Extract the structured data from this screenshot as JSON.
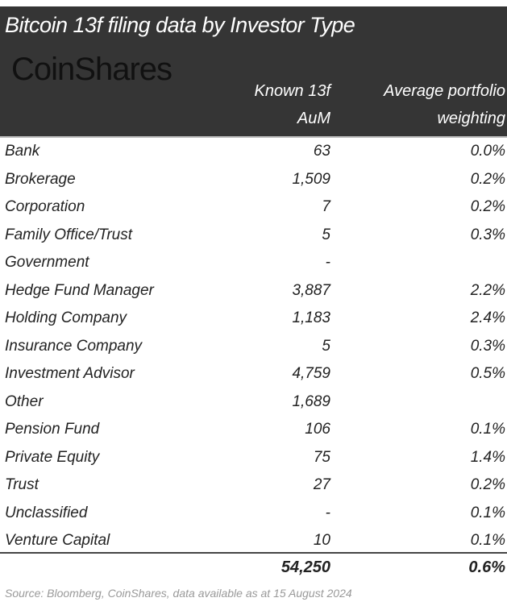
{
  "title": "Bitcoin 13f filing data by Investor Type",
  "logo": "CoinShares",
  "chart_data": {
    "type": "table",
    "title": "Bitcoin 13f filing data by Investor Type",
    "columns": [
      {
        "line1": "Known 13f",
        "line2": "AuM"
      },
      {
        "line1": "Average portfolio",
        "line2": "weighting"
      }
    ],
    "rows": [
      {
        "label": "Bank",
        "aum": "63",
        "weight": "0.0%"
      },
      {
        "label": "Brokerage",
        "aum": "1,509",
        "weight": "0.2%"
      },
      {
        "label": "Corporation",
        "aum": "7",
        "weight": "0.2%"
      },
      {
        "label": "Family Office/Trust",
        "aum": "5",
        "weight": "0.3%"
      },
      {
        "label": "Government",
        "aum": "-",
        "weight": ""
      },
      {
        "label": "Hedge Fund Manager",
        "aum": "3,887",
        "weight": "2.2%"
      },
      {
        "label": "Holding Company",
        "aum": "1,183",
        "weight": "2.4%"
      },
      {
        "label": "Insurance Company",
        "aum": "5",
        "weight": "0.3%"
      },
      {
        "label": "Investment Advisor",
        "aum": "4,759",
        "weight": "0.5%"
      },
      {
        "label": "Other",
        "aum": "1,689",
        "weight": ""
      },
      {
        "label": "Pension Fund",
        "aum": "106",
        "weight": "0.1%"
      },
      {
        "label": "Private Equity",
        "aum": "75",
        "weight": "1.4%"
      },
      {
        "label": "Trust",
        "aum": "27",
        "weight": "0.2%"
      },
      {
        "label": "Unclassified",
        "aum": "-",
        "weight": "0.1%"
      },
      {
        "label": "Venture Capital",
        "aum": "10",
        "weight": "0.1%"
      }
    ],
    "total": {
      "aum": "54,250",
      "weight": "0.6%"
    }
  },
  "source": "Source: Bloomberg, CoinShares, data available as at 15 August 2024"
}
